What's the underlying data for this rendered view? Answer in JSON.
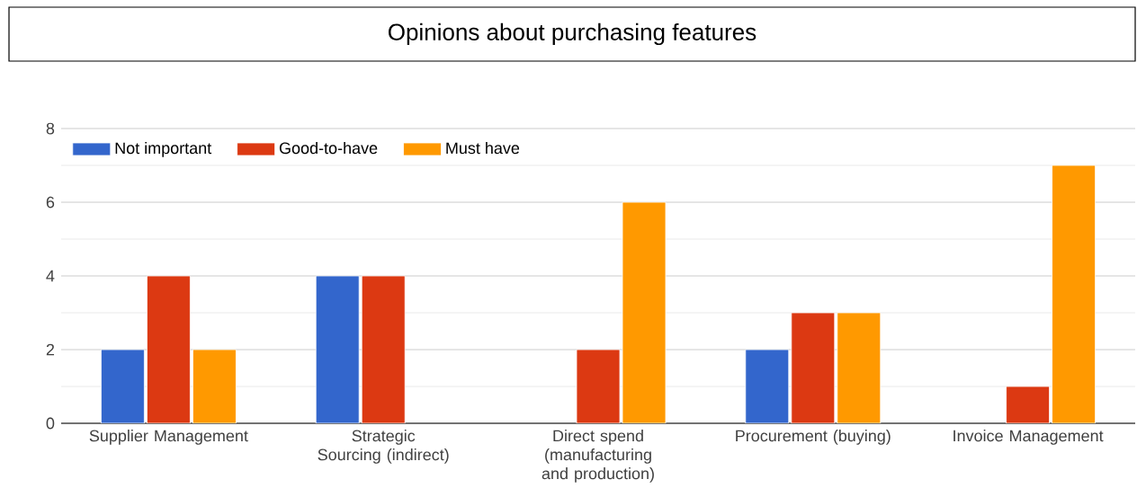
{
  "chart_data": {
    "type": "bar",
    "title": "Opinions about purchasing features",
    "categories": [
      "Supplier Management",
      "Strategic Sourcing (indirect)",
      "Direct spend (manufacturing and production)",
      "Procurement (buying)",
      "Invoice Management"
    ],
    "series": [
      {
        "name": "Not important",
        "color": "#3366cc",
        "values": [
          2,
          4,
          null,
          2,
          null
        ]
      },
      {
        "name": "Good-to-have",
        "color": "#dc3912",
        "values": [
          4,
          4,
          2,
          3,
          1
        ]
      },
      {
        "name": "Must have",
        "color": "#ff9900",
        "values": [
          2,
          null,
          6,
          3,
          7
        ]
      }
    ],
    "ylim": [
      0,
      8
    ],
    "yticks": [
      0,
      2,
      4,
      6,
      8
    ],
    "grid": "y",
    "legend": "top left"
  }
}
